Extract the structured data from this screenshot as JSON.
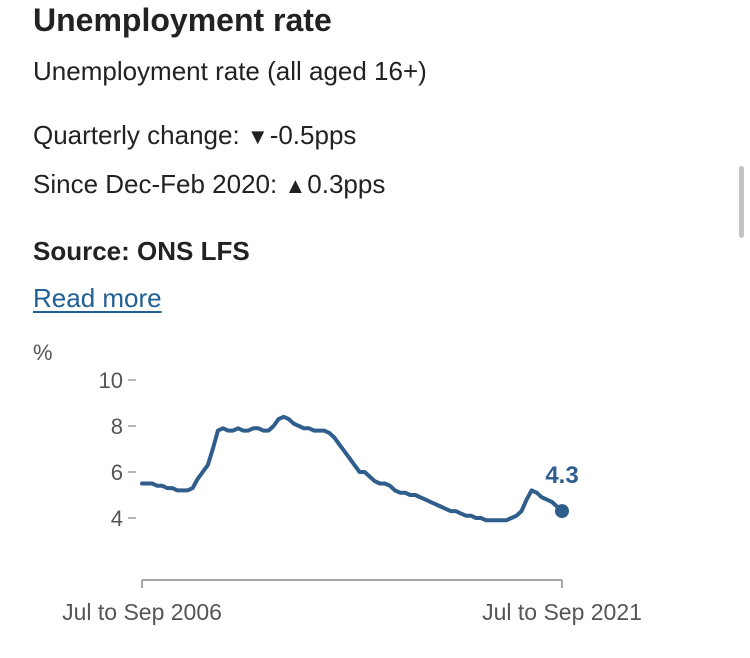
{
  "header": {
    "title": "Unemployment rate",
    "subtitle": "Unemployment rate (all aged 16+)",
    "quarterly_change_label": "Quarterly change:",
    "quarterly_change_direction": "down",
    "quarterly_change_arrow": "▼",
    "quarterly_change_value": "-0.5pps",
    "since_label": "Since Dec-Feb 2020:",
    "since_direction": "up",
    "since_arrow": "▲",
    "since_value": "0.3pps",
    "source": "Source: ONS LFS",
    "read_more": "Read more"
  },
  "colors": {
    "series": "#2f5d8c",
    "link": "#206095",
    "axis": "#888888",
    "text": "#222222"
  },
  "chart_data": {
    "type": "line",
    "title": "",
    "ylabel": "%",
    "xlabel": "",
    "ylim": [
      4,
      10
    ],
    "yticks": [
      "10",
      "8",
      "6",
      "4"
    ],
    "grid": false,
    "x_tick_labels": [
      "Jul to Sep 2006",
      "Jul to Sep 2021"
    ],
    "final_value_label": "4.3",
    "series": [
      {
        "values": [
          5.5,
          5.5,
          5.5,
          5.4,
          5.4,
          5.3,
          5.3,
          5.2,
          5.2,
          5.2,
          5.3,
          5.7,
          6.0,
          6.3,
          7.0,
          7.8,
          7.9,
          7.8,
          7.8,
          7.9,
          7.8,
          7.8,
          7.9,
          7.9,
          7.8,
          7.8,
          8.0,
          8.3,
          8.4,
          8.3,
          8.1,
          8.0,
          7.9,
          7.9,
          7.8,
          7.8,
          7.8,
          7.7,
          7.5,
          7.2,
          6.9,
          6.6,
          6.3,
          6.0,
          6.0,
          5.8,
          5.6,
          5.5,
          5.5,
          5.4,
          5.2,
          5.1,
          5.1,
          5.0,
          5.0,
          4.9,
          4.8,
          4.7,
          4.6,
          4.5,
          4.4,
          4.3,
          4.3,
          4.2,
          4.1,
          4.1,
          4.0,
          4.0,
          3.9,
          3.9,
          3.9,
          3.9,
          3.9,
          4.0,
          4.1,
          4.3,
          4.8,
          5.2,
          5.1,
          4.9,
          4.8,
          4.7,
          4.5,
          4.3
        ]
      }
    ]
  }
}
